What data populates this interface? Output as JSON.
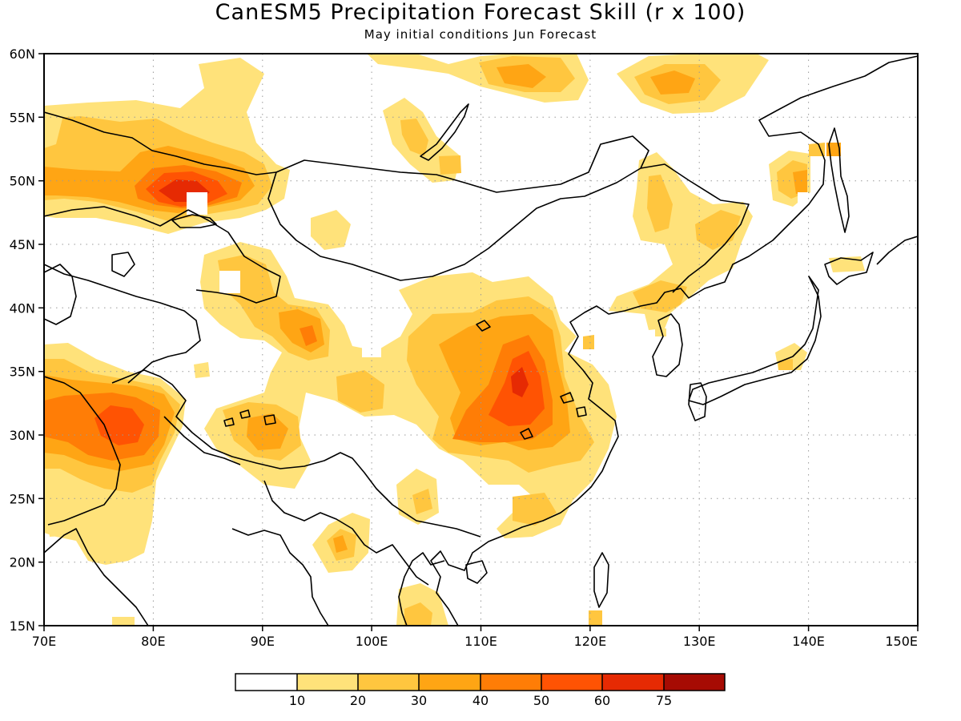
{
  "title": "CanESM5 Precipitation Forecast Skill (r x 100)",
  "subtitle": "May initial conditions  Jun Forecast",
  "map": {
    "lon_range": [
      70,
      150
    ],
    "lat_range": [
      15,
      60
    ],
    "lon_ticks": [
      "70E",
      "80E",
      "90E",
      "100E",
      "110E",
      "120E",
      "130E",
      "140E",
      "150E"
    ],
    "lat_ticks": [
      "15N",
      "20N",
      "25N",
      "30N",
      "35N",
      "40N",
      "45N",
      "50N",
      "55N",
      "60N"
    ],
    "grid": true
  },
  "colorbar": {
    "labels": [
      "10",
      "20",
      "30",
      "40",
      "50",
      "60",
      "75"
    ],
    "colors": [
      "#ffffff",
      "#ffe27a",
      "#ffc63f",
      "#ffa514",
      "#ff7d06",
      "#ff5303",
      "#e62a03",
      "#a60b03"
    ]
  },
  "chart_data": {
    "type": "heatmap",
    "title": "CanESM5 Precipitation Forecast Skill (r x 100)",
    "subtitle": "May initial conditions  Jun Forecast",
    "x_range": [
      70,
      150
    ],
    "y_range": [
      15,
      60
    ],
    "levels": [
      10,
      20,
      30,
      40,
      50,
      60,
      75
    ],
    "level_colors": [
      "#ffffff",
      "#ffe27a",
      "#ffc63f",
      "#ffa514",
      "#ff7d06",
      "#ff5303",
      "#e62a03",
      "#a60b03"
    ],
    "maxima": [
      {
        "lon": 82.5,
        "lat": 49.5,
        "value": 62
      },
      {
        "lon": 77,
        "lat": 30.5,
        "value": 52
      },
      {
        "lon": 113.5,
        "lat": 34,
        "value": 55
      },
      {
        "lon": 112,
        "lat": 31,
        "value": 42
      },
      {
        "lon": 94.5,
        "lat": 37.5,
        "value": 40
      },
      {
        "lon": 88.5,
        "lat": 42.5,
        "value": 30
      },
      {
        "lon": 91.5,
        "lat": 30.5,
        "value": 30
      },
      {
        "lon": 139.5,
        "lat": 49.5,
        "value": 45
      },
      {
        "lon": 128,
        "lat": 57.5,
        "value": 30
      },
      {
        "lon": 118,
        "lat": 58.2,
        "value": 30
      },
      {
        "lon": 126,
        "lat": 45,
        "value": 25
      },
      {
        "lon": 98,
        "lat": 21.5,
        "value": 25
      },
      {
        "lon": 105,
        "lat": 24.5,
        "value": 22
      },
      {
        "lon": 106,
        "lat": 51.5,
        "value": 25
      }
    ]
  }
}
